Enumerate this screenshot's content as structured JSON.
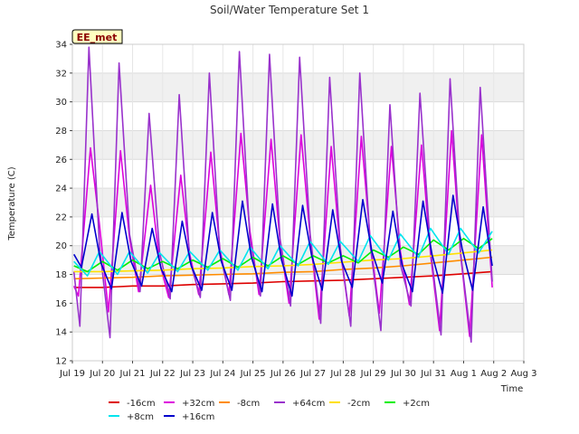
{
  "chart_data": {
    "type": "line",
    "title": "Soil/Water Temperature Set 1",
    "xlabel": "Time",
    "ylabel": "Temperature (C)",
    "badge": "EE_met",
    "ylim": [
      12,
      34
    ],
    "yticks": [
      12,
      14,
      16,
      18,
      20,
      22,
      24,
      26,
      28,
      30,
      32,
      34
    ],
    "xlim": [
      0,
      15
    ],
    "xticks": [
      {
        "x": 0,
        "label": "Jul 19"
      },
      {
        "x": 1,
        "label": "Jul 20"
      },
      {
        "x": 2,
        "label": "Jul 21"
      },
      {
        "x": 3,
        "label": "Jul 22"
      },
      {
        "x": 4,
        "label": "Jul 23"
      },
      {
        "x": 5,
        "label": "Jul 24"
      },
      {
        "x": 6,
        "label": "Jul 25"
      },
      {
        "x": 7,
        "label": "Jul 26"
      },
      {
        "x": 8,
        "label": "Jul 27"
      },
      {
        "x": 9,
        "label": "Jul 28"
      },
      {
        "x": 10,
        "label": "Jul 29"
      },
      {
        "x": 11,
        "label": "Jul 30"
      },
      {
        "x": 12,
        "label": "Jul 31"
      },
      {
        "x": 13,
        "label": "Aug 1"
      },
      {
        "x": 14,
        "label": "Aug 2"
      },
      {
        "x": 15,
        "label": "Aug 3"
      }
    ],
    "bands": true,
    "grid": true,
    "legend_position": "bottom",
    "series": [
      {
        "name": "-16cm",
        "color": "#dd0000",
        "x": [
          0.05,
          1,
          2,
          3,
          4,
          5,
          6,
          7,
          8,
          9,
          10,
          11,
          12,
          13,
          13.95
        ],
        "y": [
          17.1,
          17.1,
          17.2,
          17.2,
          17.3,
          17.35,
          17.4,
          17.5,
          17.55,
          17.6,
          17.7,
          17.8,
          17.9,
          18.05,
          18.2
        ]
      },
      {
        "name": "+32cm",
        "color": "#dd00dd",
        "x": [
          0.05,
          0.2,
          0.6,
          0.9,
          1.2,
          1.6,
          1.9,
          2.2,
          2.6,
          2.9,
          3.2,
          3.6,
          3.9,
          4.2,
          4.6,
          4.9,
          5.2,
          5.6,
          5.9,
          6.2,
          6.6,
          6.9,
          7.2,
          7.6,
          7.9,
          8.2,
          8.6,
          8.9,
          9.2,
          9.6,
          9.9,
          10.2,
          10.6,
          10.9,
          11.2,
          11.6,
          11.9,
          12.2,
          12.6,
          12.9,
          13.2,
          13.6,
          13.95
        ],
        "y": [
          17.2,
          16.5,
          26.8,
          21.5,
          15.4,
          26.6,
          20.5,
          16.8,
          24.2,
          18.8,
          16.4,
          24.9,
          19.4,
          16.6,
          26.5,
          19.8,
          16.6,
          27.8,
          21.0,
          16.6,
          27.4,
          20.3,
          16.0,
          27.7,
          20.6,
          14.9,
          26.9,
          19.7,
          15.1,
          27.6,
          20.4,
          15.3,
          26.9,
          19.6,
          15.9,
          27.0,
          19.4,
          14.1,
          28.0,
          19.4,
          13.7,
          27.7,
          17.1
        ]
      },
      {
        "name": "-8cm",
        "color": "#ff8c00",
        "x": [
          0.05,
          1,
          2,
          3,
          4,
          5,
          6,
          7,
          8,
          9,
          10,
          11,
          12,
          13,
          13.95
        ],
        "y": [
          17.7,
          17.75,
          17.8,
          17.9,
          17.95,
          18.0,
          18.05,
          18.15,
          18.2,
          18.35,
          18.45,
          18.6,
          18.8,
          19.0,
          19.2
        ]
      },
      {
        "name": "+64cm",
        "color": "#9932cc",
        "x": [
          0.05,
          0.25,
          0.55,
          0.9,
          1.25,
          1.55,
          1.9,
          2.25,
          2.55,
          2.9,
          3.25,
          3.55,
          3.9,
          4.25,
          4.55,
          4.9,
          5.25,
          5.55,
          5.9,
          6.25,
          6.55,
          6.9,
          7.25,
          7.55,
          7.9,
          8.25,
          8.55,
          8.9,
          9.25,
          9.55,
          9.9,
          10.25,
          10.55,
          10.9,
          11.25,
          11.55,
          11.9,
          12.25,
          12.55,
          12.9,
          13.25,
          13.55,
          13.95
        ],
        "y": [
          18.2,
          14.4,
          33.8,
          20.0,
          13.6,
          32.7,
          20.8,
          16.8,
          29.2,
          19.5,
          16.3,
          30.5,
          19.0,
          16.4,
          32.0,
          19.5,
          16.2,
          33.5,
          20.4,
          16.5,
          33.3,
          20.5,
          15.8,
          33.1,
          20.8,
          14.6,
          31.7,
          19.9,
          14.4,
          32.0,
          20.0,
          14.1,
          29.8,
          18.7,
          15.8,
          30.6,
          19.7,
          13.8,
          31.6,
          19.5,
          13.3,
          31.0,
          17.5
        ]
      },
      {
        "name": "-2cm",
        "color": "#ffe000",
        "x": [
          0.05,
          1,
          2,
          3,
          4,
          5,
          6,
          7,
          8,
          9,
          10,
          11,
          12,
          13,
          13.95
        ],
        "y": [
          18.2,
          18.2,
          18.25,
          18.3,
          18.4,
          18.45,
          18.55,
          18.6,
          18.7,
          18.85,
          19.0,
          19.1,
          19.3,
          19.5,
          19.7
        ]
      },
      {
        "name": "+2cm",
        "color": "#00ee00",
        "x": [
          0.05,
          0.5,
          1,
          1.5,
          2,
          2.5,
          3,
          3.5,
          4,
          4.5,
          5,
          5.5,
          6,
          6.5,
          7,
          7.5,
          8,
          8.5,
          9,
          9.5,
          10,
          10.5,
          11,
          11.5,
          12,
          12.5,
          13,
          13.5,
          13.95
        ],
        "y": [
          18.6,
          18.2,
          18.9,
          18.3,
          19.0,
          18.4,
          18.9,
          18.4,
          19.0,
          18.5,
          19.1,
          18.5,
          19.2,
          18.6,
          19.3,
          18.7,
          19.3,
          18.8,
          19.3,
          18.8,
          19.7,
          19.2,
          19.9,
          19.4,
          20.4,
          19.7,
          20.5,
          19.8,
          20.5
        ]
      },
      {
        "name": "+8cm",
        "color": "#00e5ee",
        "x": [
          0.05,
          0.5,
          0.9,
          1.5,
          1.9,
          2.5,
          2.9,
          3.5,
          3.9,
          4.5,
          4.9,
          5.5,
          5.9,
          6.5,
          6.9,
          7.5,
          7.9,
          8.5,
          8.9,
          9.5,
          9.9,
          10.5,
          10.9,
          11.5,
          11.9,
          12.5,
          12.9,
          13.5,
          13.95
        ],
        "y": [
          18.9,
          17.9,
          19.6,
          18.0,
          19.6,
          18.1,
          19.5,
          18.2,
          19.6,
          18.3,
          19.7,
          18.3,
          19.9,
          18.4,
          20.0,
          18.6,
          20.3,
          18.7,
          20.3,
          18.9,
          20.7,
          19.0,
          20.8,
          19.2,
          21.2,
          19.4,
          21.2,
          19.5,
          21.0
        ]
      },
      {
        "name": "+16cm",
        "color": "#0000cc",
        "x": [
          0.05,
          0.3,
          0.65,
          0.95,
          1.3,
          1.65,
          1.95,
          2.3,
          2.65,
          2.95,
          3.3,
          3.65,
          3.95,
          4.3,
          4.65,
          4.95,
          5.3,
          5.65,
          5.95,
          6.3,
          6.65,
          6.95,
          7.3,
          7.65,
          7.95,
          8.3,
          8.65,
          8.95,
          9.3,
          9.65,
          9.95,
          10.3,
          10.65,
          10.95,
          11.3,
          11.65,
          11.95,
          12.3,
          12.65,
          12.95,
          13.3,
          13.65,
          13.95
        ],
        "y": [
          19.4,
          18.5,
          22.2,
          18.8,
          17.0,
          22.3,
          18.9,
          17.2,
          21.2,
          18.4,
          16.8,
          21.7,
          18.6,
          16.9,
          22.3,
          18.9,
          16.9,
          23.1,
          19.2,
          16.8,
          22.9,
          19.0,
          16.5,
          22.8,
          19.3,
          16.9,
          22.5,
          18.9,
          17.1,
          23.2,
          19.6,
          17.4,
          22.4,
          18.7,
          16.8,
          23.1,
          19.4,
          16.7,
          23.5,
          19.8,
          16.9,
          22.7,
          18.6
        ]
      }
    ]
  }
}
